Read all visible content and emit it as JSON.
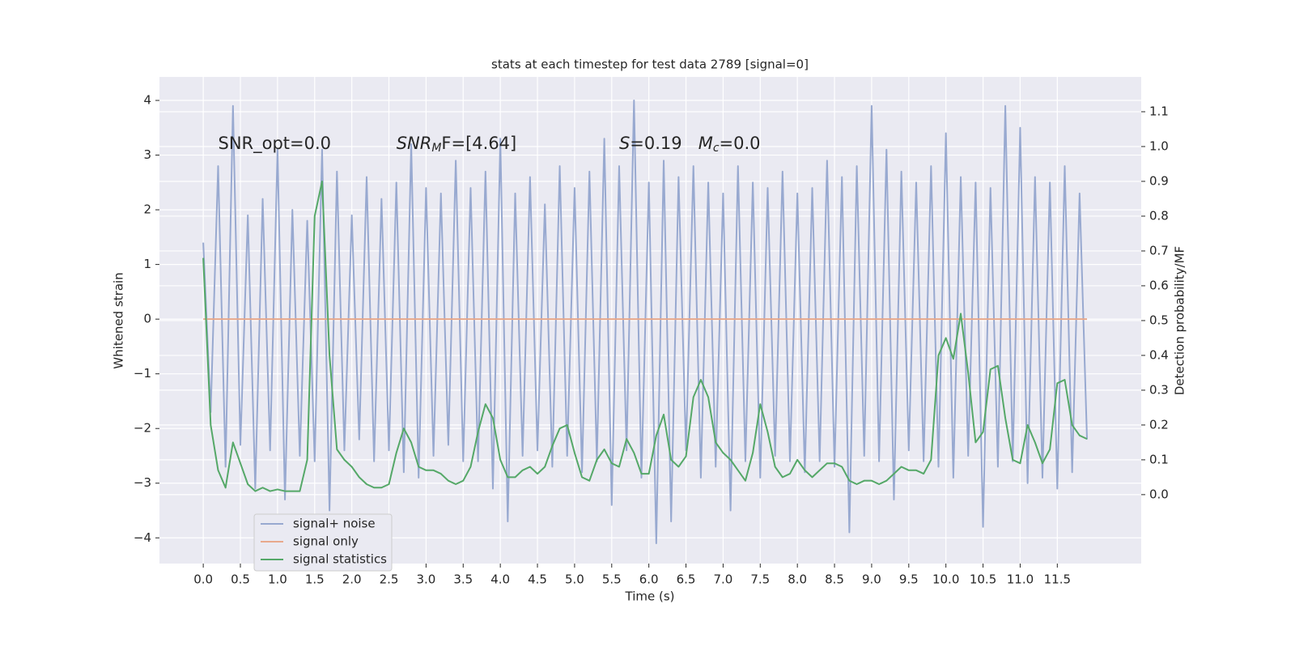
{
  "chart_data": {
    "type": "line",
    "title": "stats at each timestep for test data 2789 [signal=0]",
    "xlabel": "Time (s)",
    "ylabel": "Whitened strain",
    "y2label": "Detection probability/MF",
    "grid": true,
    "legend": "lower left",
    "xlim": [
      -0.59,
      12.63
    ],
    "ylim": [
      -4.47,
      4.43
    ],
    "y2lim": [
      -0.198,
      1.2
    ],
    "xticks": [
      {
        "value": 0,
        "label": "0.0"
      },
      0.5,
      {
        "value": 1,
        "label": "1.0"
      },
      1.5,
      {
        "value": 2,
        "label": "2.0"
      },
      2.5,
      {
        "value": 3,
        "label": "3.0"
      },
      3.5,
      {
        "value": 4,
        "label": "4.0"
      },
      4.5,
      {
        "value": 5,
        "label": "5.0"
      },
      5.5,
      {
        "value": 6,
        "label": "6.0"
      },
      6.5,
      {
        "value": 7,
        "label": "7.0"
      },
      7.5,
      {
        "value": 8,
        "label": "8.0"
      },
      8.5,
      {
        "value": 9,
        "label": "9.0"
      },
      9.5,
      {
        "value": 10,
        "label": "10.0"
      },
      10.5,
      {
        "value": 11,
        "label": "11.0"
      },
      11.5
    ],
    "yticks": [
      {
        "value": -4,
        "label": "−4"
      },
      {
        "value": -3,
        "label": "−3"
      },
      {
        "value": -2,
        "label": "−2"
      },
      {
        "value": -1,
        "label": "−1"
      },
      0,
      1,
      2,
      3,
      4
    ],
    "y2ticks": [
      {
        "value": 0,
        "label": "0.0"
      },
      0.1,
      0.2,
      0.3,
      0.4,
      0.5,
      0.6,
      0.7,
      0.8,
      0.9,
      {
        "value": 1,
        "label": "1.0"
      },
      1.1
    ],
    "annotations": [
      {
        "x": 0.2,
        "y": 3.2,
        "parts": [
          {
            "text": "SNR_opt=0.0",
            "italic": false
          }
        ]
      },
      {
        "x": 2.6,
        "y": 3.2,
        "parts": [
          {
            "text": "SNR",
            "italic": true
          },
          {
            "text": "M",
            "italic": true,
            "sub": true
          },
          {
            "text": "F=[4.64]",
            "italic": false
          }
        ]
      },
      {
        "x": 5.6,
        "y": 3.2,
        "parts": [
          {
            "text": "S",
            "italic": true
          },
          {
            "text": "=0.19   ",
            "italic": false
          },
          {
            "text": "M",
            "italic": true
          },
          {
            "text": "c",
            "italic": true,
            "sub": true
          },
          {
            "text": "=0.0",
            "italic": false
          }
        ]
      }
    ],
    "x": [
      0.0,
      0.1,
      0.2,
      0.3,
      0.4,
      0.5,
      0.6,
      0.7,
      0.8,
      0.9,
      1.0,
      1.1,
      1.2,
      1.3,
      1.4,
      1.5,
      1.6,
      1.7,
      1.8,
      1.9,
      2.0,
      2.1,
      2.2,
      2.3,
      2.4,
      2.5,
      2.6,
      2.7,
      2.8,
      2.9,
      3.0,
      3.1,
      3.2,
      3.3,
      3.4,
      3.5,
      3.6,
      3.7,
      3.8,
      3.9,
      4.0,
      4.1,
      4.2,
      4.3,
      4.4,
      4.5,
      4.6,
      4.7,
      4.8,
      4.9,
      5.0,
      5.1,
      5.2,
      5.3,
      5.4,
      5.5,
      5.6,
      5.7,
      5.8,
      5.9,
      6.0,
      6.1,
      6.2,
      6.3,
      6.4,
      6.5,
      6.6,
      6.7,
      6.8,
      6.9,
      7.0,
      7.1,
      7.2,
      7.3,
      7.4,
      7.5,
      7.6,
      7.7,
      7.8,
      7.9,
      8.0,
      8.1,
      8.2,
      8.3,
      8.4,
      8.5,
      8.6,
      8.7,
      8.8,
      8.9,
      9.0,
      9.1,
      9.2,
      9.3,
      9.4,
      9.5,
      9.6,
      9.7,
      9.8,
      9.9,
      10.0,
      10.1,
      10.2,
      10.3,
      10.4,
      10.5,
      10.6,
      10.7,
      10.8,
      10.9,
      11.0,
      11.1,
      11.2,
      11.3,
      11.4,
      11.5,
      11.6,
      11.7,
      11.8,
      11.9
    ],
    "series": [
      {
        "name": "signal+ noise",
        "color": "#98a9d0",
        "values": [
          1.4,
          -1.7,
          2.8,
          -2.7,
          3.9,
          -2.3,
          1.9,
          -3.1,
          2.2,
          -2.4,
          3.1,
          -3.3,
          2.0,
          -2.5,
          1.8,
          -2.6,
          3.1,
          -3.5,
          2.7,
          -2.4,
          1.9,
          -2.2,
          2.6,
          -2.6,
          2.2,
          -2.4,
          2.5,
          -2.8,
          3.2,
          -2.9,
          2.4,
          -2.5,
          2.3,
          -2.3,
          2.9,
          -2.6,
          2.4,
          -2.6,
          2.7,
          -3.1,
          3.3,
          -3.7,
          2.3,
          -2.5,
          2.6,
          -2.4,
          2.1,
          -2.7,
          2.8,
          -2.5,
          2.4,
          -2.8,
          2.7,
          -2.6,
          3.3,
          -3.4,
          2.8,
          -2.4,
          4.0,
          -2.9,
          2.5,
          -4.1,
          2.9,
          -3.7,
          2.6,
          -2.4,
          2.8,
          -2.9,
          2.5,
          -2.7,
          2.3,
          -3.5,
          2.8,
          -2.6,
          2.5,
          -2.9,
          2.4,
          -2.5,
          2.7,
          -2.6,
          2.3,
          -2.8,
          2.4,
          -2.6,
          2.9,
          -2.7,
          2.6,
          -3.9,
          2.8,
          -2.5,
          3.9,
          -2.6,
          3.1,
          -3.3,
          2.7,
          -2.4,
          2.5,
          -2.6,
          2.8,
          -2.7,
          3.4,
          -2.9,
          2.6,
          -2.5,
          2.5,
          -3.8,
          2.4,
          -2.7,
          3.9,
          -2.6,
          3.5,
          -3.0,
          2.6,
          -2.9,
          2.5,
          -3.1,
          2.8,
          -2.8,
          2.3,
          -2.2
        ]
      },
      {
        "name": "signal only",
        "color": "#e8a98c",
        "values": [
          0,
          0,
          0,
          0,
          0,
          0,
          0,
          0,
          0,
          0,
          0,
          0,
          0,
          0,
          0,
          0,
          0,
          0,
          0,
          0,
          0,
          0,
          0,
          0,
          0,
          0,
          0,
          0,
          0,
          0,
          0,
          0,
          0,
          0,
          0,
          0,
          0,
          0,
          0,
          0,
          0,
          0,
          0,
          0,
          0,
          0,
          0,
          0,
          0,
          0,
          0,
          0,
          0,
          0,
          0,
          0,
          0,
          0,
          0,
          0,
          0,
          0,
          0,
          0,
          0,
          0,
          0,
          0,
          0,
          0,
          0,
          0,
          0,
          0,
          0,
          0,
          0,
          0,
          0,
          0,
          0,
          0,
          0,
          0,
          0,
          0,
          0,
          0,
          0,
          0,
          0,
          0,
          0,
          0,
          0,
          0,
          0,
          0,
          0,
          0,
          0,
          0,
          0,
          0,
          0,
          0,
          0,
          0,
          0,
          0,
          0,
          0,
          0,
          0,
          0,
          0,
          0,
          0,
          0,
          0
        ]
      },
      {
        "name": "signal statistics",
        "color": "#55a868",
        "axis": "y2",
        "values": [
          0.68,
          0.2,
          0.07,
          0.02,
          0.15,
          0.09,
          0.03,
          0.01,
          0.02,
          0.01,
          0.015,
          0.01,
          0.01,
          0.01,
          0.1,
          0.8,
          0.9,
          0.4,
          0.13,
          0.1,
          0.08,
          0.05,
          0.03,
          0.02,
          0.02,
          0.03,
          0.12,
          0.19,
          0.15,
          0.08,
          0.07,
          0.07,
          0.06,
          0.04,
          0.03,
          0.04,
          0.08,
          0.18,
          0.26,
          0.22,
          0.1,
          0.05,
          0.05,
          0.07,
          0.08,
          0.06,
          0.08,
          0.14,
          0.19,
          0.2,
          0.12,
          0.05,
          0.04,
          0.1,
          0.13,
          0.09,
          0.08,
          0.16,
          0.12,
          0.06,
          0.06,
          0.17,
          0.23,
          0.1,
          0.08,
          0.11,
          0.28,
          0.33,
          0.28,
          0.15,
          0.12,
          0.1,
          0.07,
          0.04,
          0.12,
          0.26,
          0.18,
          0.08,
          0.05,
          0.06,
          0.1,
          0.07,
          0.05,
          0.07,
          0.09,
          0.09,
          0.08,
          0.04,
          0.03,
          0.04,
          0.04,
          0.03,
          0.04,
          0.06,
          0.08,
          0.07,
          0.07,
          0.06,
          0.1,
          0.4,
          0.45,
          0.39,
          0.52,
          0.35,
          0.15,
          0.18,
          0.36,
          0.37,
          0.22,
          0.1,
          0.09,
          0.2,
          0.15,
          0.09,
          0.13,
          0.32,
          0.33,
          0.2,
          0.17,
          0.16
        ]
      }
    ]
  }
}
